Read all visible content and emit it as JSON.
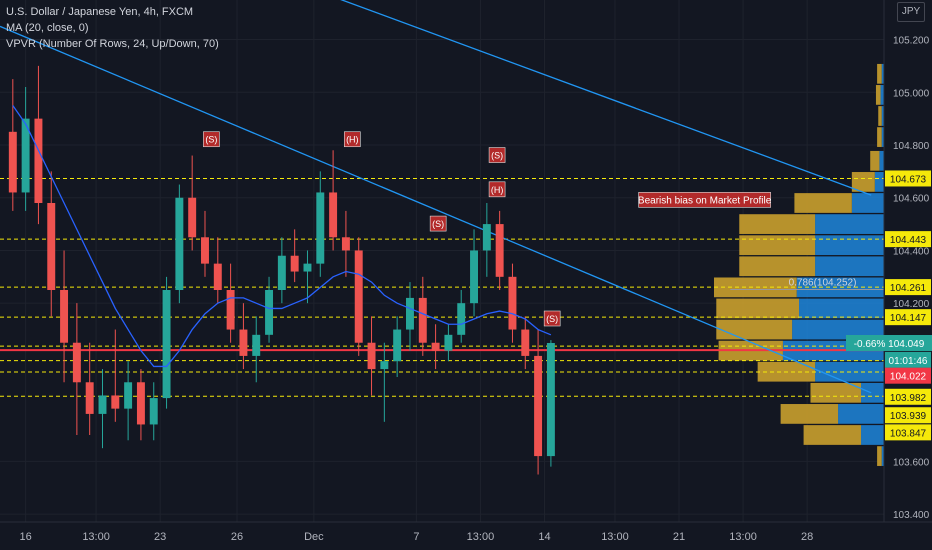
{
  "legend": {
    "symbol": "U.S. Dollar / Japanese Yen, 4h, FXCM",
    "ma": "MA (20, close, 0)",
    "vpvr": "VPVR (Number Of Rows, 24, Up/Down, 70)"
  },
  "currency": "JPY",
  "annotation": "Bearish bias on Market Profile",
  "fib_label": "0.786(104.252)",
  "wave_labels": [
    {
      "text": "(S)",
      "x": 15.5,
      "y": 104.82
    },
    {
      "text": "(H)",
      "x": 26.5,
      "y": 104.82
    },
    {
      "text": "(S)",
      "x": 33.2,
      "y": 104.5
    },
    {
      "text": "(S)",
      "x": 37.8,
      "y": 104.76
    },
    {
      "text": "(H)",
      "x": 37.8,
      "y": 104.63
    },
    {
      "text": "(S)",
      "x": 42.1,
      "y": 104.14
    }
  ],
  "colors": {
    "background": "#131722",
    "up": "#26a69a",
    "down": "#ef5350",
    "ma": "#2962ff",
    "trendline": "#2196f3",
    "level": "#f5e90a",
    "current_price": "#f23645",
    "vp_up": "#1e7fd0",
    "vp_down": "#caa02d",
    "annotation_bg": "#b22a2a"
  },
  "chart_data": {
    "type": "candlestick",
    "xlabel": "",
    "ylabel": "",
    "y_range": [
      103.37,
      105.35
    ],
    "x_range": [
      -1,
      68
    ],
    "x_ticks": [
      {
        "label": "16",
        "x": 1
      },
      {
        "label": "13:00",
        "x": 6.5
      },
      {
        "label": "23",
        "x": 11.5
      },
      {
        "label": "26",
        "x": 17.5
      },
      {
        "label": "Dec",
        "x": 23.5
      },
      {
        "label": "7",
        "x": 31.5
      },
      {
        "label": "13:00",
        "x": 36.5
      },
      {
        "label": "14",
        "x": 41.5
      },
      {
        "label": "13:00",
        "x": 47
      },
      {
        "label": "21",
        "x": 52
      },
      {
        "label": "13:00",
        "x": 57
      },
      {
        "label": "28",
        "x": 62
      }
    ],
    "y_ticks": [
      {
        "label": "105.200",
        "v": 105.2
      },
      {
        "label": "105.000",
        "v": 105.0
      },
      {
        "label": "104.800",
        "v": 104.8
      },
      {
        "label": "104.600",
        "v": 104.6
      },
      {
        "label": "104.400",
        "v": 104.4
      },
      {
        "label": "104.200",
        "v": 104.2
      },
      {
        "label": "103.600",
        "v": 103.6
      },
      {
        "label": "103.400",
        "v": 103.4
      }
    ],
    "price_tags": [
      {
        "label": "104.673",
        "v": 104.673,
        "style": "level"
      },
      {
        "label": "104.443",
        "v": 104.443,
        "style": "level"
      },
      {
        "label": "104.261",
        "v": 104.261,
        "style": "level"
      },
      {
        "label": "104.147",
        "v": 104.147,
        "style": "level"
      },
      {
        "label": "-0.66%  104.049",
        "v": 104.049,
        "style": "up"
      },
      {
        "label": "01:01:46",
        "v": 103.985,
        "style": "up"
      },
      {
        "label": "104.022",
        "v": 103.925,
        "style": "price"
      },
      {
        "label": "103.982",
        "v": 103.845,
        "style": "level"
      },
      {
        "label": "103.939",
        "v": 103.775,
        "style": "level"
      },
      {
        "label": "103.847",
        "v": 103.71,
        "style": "level"
      }
    ],
    "levels": [
      104.673,
      104.443,
      104.261,
      104.147,
      104.037,
      103.982,
      103.939,
      103.847
    ],
    "current_price": 104.022,
    "trendlines": [
      {
        "x1": 19,
        "y1": 105.47,
        "x2": 67,
        "y2": 104.61
      },
      {
        "x1": -1,
        "y1": 105.25,
        "x2": 67,
        "y2": 103.86
      }
    ],
    "fib_level": 104.252,
    "series": [
      {
        "o": 104.85,
        "h": 105.05,
        "l": 104.55,
        "c": 104.62
      },
      {
        "o": 104.62,
        "h": 105.02,
        "l": 104.55,
        "c": 104.9
      },
      {
        "o": 104.9,
        "h": 105.1,
        "l": 104.5,
        "c": 104.58
      },
      {
        "o": 104.58,
        "h": 104.7,
        "l": 104.15,
        "c": 104.25
      },
      {
        "o": 104.25,
        "h": 104.4,
        "l": 103.9,
        "c": 104.05
      },
      {
        "o": 104.05,
        "h": 104.2,
        "l": 103.7,
        "c": 103.9
      },
      {
        "o": 103.9,
        "h": 104.05,
        "l": 103.7,
        "c": 103.78
      },
      {
        "o": 103.78,
        "h": 103.95,
        "l": 103.65,
        "c": 103.85
      },
      {
        "o": 103.85,
        "h": 104.1,
        "l": 103.75,
        "c": 103.8
      },
      {
        "o": 103.8,
        "h": 103.98,
        "l": 103.68,
        "c": 103.9
      },
      {
        "o": 103.9,
        "h": 103.95,
        "l": 103.68,
        "c": 103.74
      },
      {
        "o": 103.74,
        "h": 103.9,
        "l": 103.68,
        "c": 103.84
      },
      {
        "o": 103.84,
        "h": 104.3,
        "l": 103.8,
        "c": 104.25
      },
      {
        "o": 104.25,
        "h": 104.65,
        "l": 104.2,
        "c": 104.6
      },
      {
        "o": 104.6,
        "h": 104.76,
        "l": 104.4,
        "c": 104.45
      },
      {
        "o": 104.45,
        "h": 104.55,
        "l": 104.3,
        "c": 104.35
      },
      {
        "o": 104.35,
        "h": 104.45,
        "l": 104.2,
        "c": 104.25
      },
      {
        "o": 104.25,
        "h": 104.35,
        "l": 104.05,
        "c": 104.1
      },
      {
        "o": 104.1,
        "h": 104.2,
        "l": 103.95,
        "c": 104.0
      },
      {
        "o": 104.0,
        "h": 104.15,
        "l": 103.9,
        "c": 104.08
      },
      {
        "o": 104.08,
        "h": 104.3,
        "l": 104.05,
        "c": 104.25
      },
      {
        "o": 104.25,
        "h": 104.45,
        "l": 104.2,
        "c": 104.38
      },
      {
        "o": 104.38,
        "h": 104.48,
        "l": 104.28,
        "c": 104.32
      },
      {
        "o": 104.32,
        "h": 104.4,
        "l": 104.2,
        "c": 104.35
      },
      {
        "o": 104.35,
        "h": 104.7,
        "l": 104.3,
        "c": 104.62
      },
      {
        "o": 104.62,
        "h": 104.78,
        "l": 104.4,
        "c": 104.45
      },
      {
        "o": 104.45,
        "h": 104.55,
        "l": 104.3,
        "c": 104.4
      },
      {
        "o": 104.4,
        "h": 104.45,
        "l": 104.0,
        "c": 104.05
      },
      {
        "o": 104.05,
        "h": 104.15,
        "l": 103.85,
        "c": 103.95
      },
      {
        "o": 103.95,
        "h": 104.05,
        "l": 103.75,
        "c": 103.98
      },
      {
        "o": 103.98,
        "h": 104.15,
        "l": 103.92,
        "c": 104.1
      },
      {
        "o": 104.1,
        "h": 104.28,
        "l": 104.02,
        "c": 104.22
      },
      {
        "o": 104.22,
        "h": 104.3,
        "l": 104.0,
        "c": 104.05
      },
      {
        "o": 104.05,
        "h": 104.12,
        "l": 103.95,
        "c": 104.02
      },
      {
        "o": 104.02,
        "h": 104.12,
        "l": 103.98,
        "c": 104.08
      },
      {
        "o": 104.08,
        "h": 104.25,
        "l": 104.05,
        "c": 104.2
      },
      {
        "o": 104.2,
        "h": 104.48,
        "l": 104.15,
        "c": 104.4
      },
      {
        "o": 104.4,
        "h": 104.58,
        "l": 104.3,
        "c": 104.5
      },
      {
        "o": 104.5,
        "h": 104.55,
        "l": 104.25,
        "c": 104.3
      },
      {
        "o": 104.3,
        "h": 104.35,
        "l": 104.05,
        "c": 104.1
      },
      {
        "o": 104.1,
        "h": 104.15,
        "l": 103.95,
        "c": 104.0
      },
      {
        "o": 104.0,
        "h": 104.1,
        "l": 103.55,
        "c": 103.62
      },
      {
        "o": 103.62,
        "h": 104.06,
        "l": 103.58,
        "c": 104.049
      }
    ],
    "ma": [
      104.95,
      104.88,
      104.78,
      104.68,
      104.58,
      104.48,
      104.38,
      104.28,
      104.18,
      104.1,
      104.02,
      103.96,
      103.96,
      104.02,
      104.1,
      104.16,
      104.2,
      104.22,
      104.22,
      104.2,
      104.18,
      104.18,
      104.2,
      104.22,
      104.26,
      104.3,
      104.32,
      104.31,
      104.28,
      104.23,
      104.2,
      104.18,
      104.16,
      104.14,
      104.12,
      104.12,
      104.14,
      104.16,
      104.17,
      104.16,
      104.14,
      104.1,
      104.08
    ],
    "volume_profile": [
      {
        "price": 105.07,
        "up": 2,
        "down": 1
      },
      {
        "price": 104.99,
        "up": 2,
        "down": 1.5
      },
      {
        "price": 104.91,
        "up": 1.5,
        "down": 1
      },
      {
        "price": 104.83,
        "up": 2,
        "down": 1
      },
      {
        "price": 104.74,
        "up": 4,
        "down": 2
      },
      {
        "price": 104.66,
        "up": 10,
        "down": 4
      },
      {
        "price": 104.58,
        "up": 25,
        "down": 14
      },
      {
        "price": 104.5,
        "up": 33,
        "down": 30
      },
      {
        "price": 104.42,
        "up": 33,
        "down": 30
      },
      {
        "price": 104.34,
        "up": 33,
        "down": 30
      },
      {
        "price": 104.26,
        "up": 36,
        "down": 38
      },
      {
        "price": 104.18,
        "up": 36,
        "down": 37
      },
      {
        "price": 104.1,
        "up": 33,
        "down": 40
      },
      {
        "price": 104.02,
        "up": 28,
        "down": 44
      },
      {
        "price": 103.94,
        "up": 25,
        "down": 30
      },
      {
        "price": 103.86,
        "up": 22,
        "down": 10
      },
      {
        "price": 103.78,
        "up": 25,
        "down": 20
      },
      {
        "price": 103.7,
        "up": 25,
        "down": 10
      },
      {
        "price": 103.62,
        "up": 2,
        "down": 1
      }
    ]
  }
}
